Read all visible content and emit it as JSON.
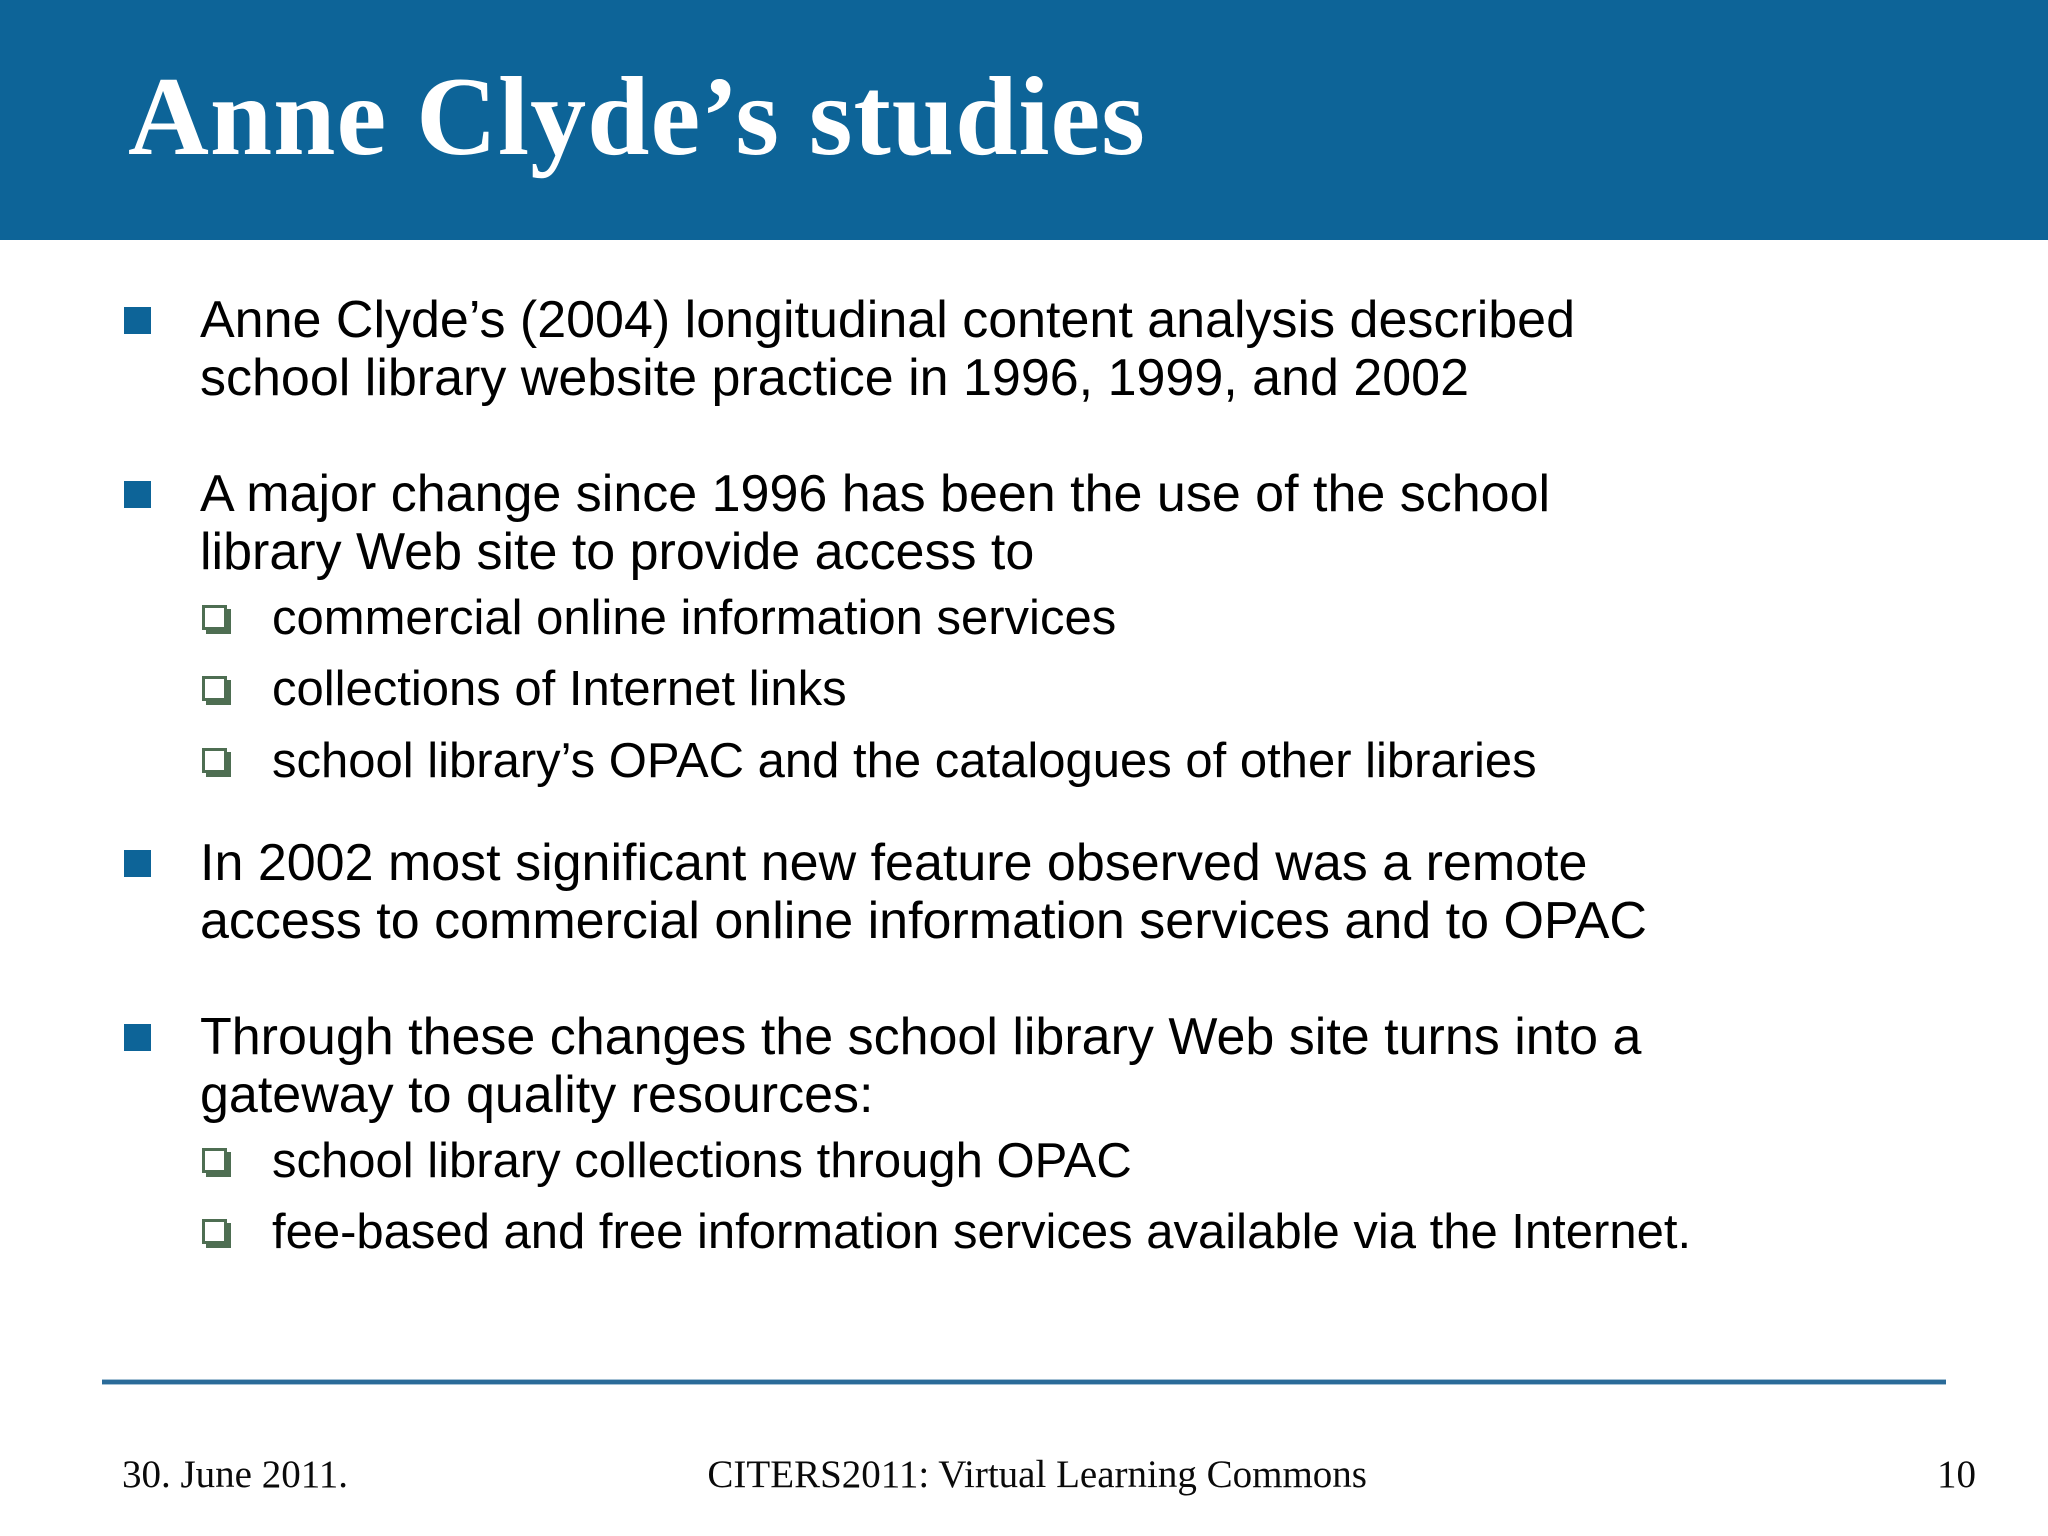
{
  "slide": {
    "title": "Anne Clyde’s studies",
    "bullets": [
      {
        "text": "Anne Clyde’s (2004) longitudinal content analysis described school library website practice in 1996, 1999, and 2002",
        "lines": [
          "Anne Clyde’s (2004) longitudinal content analysis described",
          "school library website practice in 1996, 1999, and 2002"
        ],
        "subs": []
      },
      {
        "text": "A major change since 1996 has been the use of the school library Web site to provide access to",
        "lines": [
          "A major change since 1996 has been the use of the school",
          "library Web site to provide access to"
        ],
        "subs": [
          "commercial online information services",
          "collections of Internet links",
          "school library’s OPAC and the catalogues of other libraries"
        ]
      },
      {
        "text": "In 2002 most significant new feature observed was a remote access to commercial online information services and to OPAC",
        "lines": [
          "In 2002 most significant new feature observed was a remote",
          "access to commercial online information services and to OPAC"
        ],
        "subs": []
      },
      {
        "text": "Through these changes the school library Web site turns into a gateway to quality resources:",
        "lines": [
          "Through these changes the school library Web site turns into a",
          "gateway to quality resources:"
        ],
        "subs": [
          "school library collections through OPAC",
          "fee-based and free information services available via the Internet."
        ]
      }
    ],
    "footer": {
      "date": "30. June 2011.",
      "center": "CITERS2011: Virtual Learning Commons",
      "page": "10"
    },
    "colors": {
      "header_blue": "#0d6498",
      "bullet_blue": "#0d6498",
      "sub_marker_green": "#4e6e52",
      "footer_line_blue": "#2a6b99",
      "title_text": "#ffffff",
      "body_text": "#000000"
    }
  }
}
